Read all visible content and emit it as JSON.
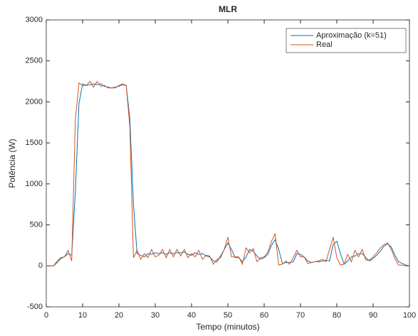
{
  "chart_data": {
    "type": "line",
    "title": "MLR",
    "xlabel": "Tempo (minutos)",
    "ylabel": "Potência (W)",
    "x": [
      0,
      1,
      2,
      3,
      4,
      5,
      6,
      7,
      8,
      9,
      10,
      11,
      12,
      13,
      14,
      15,
      16,
      17,
      18,
      19,
      20,
      21,
      22,
      23,
      24,
      25,
      26,
      27,
      28,
      29,
      30,
      31,
      32,
      33,
      34,
      35,
      36,
      37,
      38,
      39,
      40,
      41,
      42,
      43,
      44,
      45,
      46,
      47,
      48,
      49,
      50,
      51,
      52,
      53,
      54,
      55,
      56,
      57,
      58,
      59,
      60,
      61,
      62,
      63,
      64,
      65,
      66,
      67,
      68,
      69,
      70,
      71,
      72,
      73,
      74,
      75,
      76,
      77,
      78,
      79,
      80,
      81,
      82,
      83,
      84,
      85,
      86,
      87,
      88,
      89,
      90,
      91,
      92,
      93,
      94,
      95,
      96,
      97,
      98,
      99,
      100
    ],
    "series": [
      {
        "name": "Aproximação (k=51)",
        "color": "#0072bd",
        "values": [
          0,
          0,
          0,
          40,
          90,
          110,
          150,
          130,
          900,
          1980,
          2220,
          2200,
          2210,
          2220,
          2210,
          2220,
          2190,
          2180,
          2170,
          2180,
          2190,
          2210,
          2200,
          1800,
          750,
          150,
          130,
          110,
          150,
          140,
          160,
          150,
          160,
          140,
          160,
          150,
          160,
          160,
          170,
          140,
          130,
          160,
          140,
          150,
          120,
          110,
          60,
          50,
          120,
          200,
          280,
          200,
          100,
          100,
          50,
          110,
          200,
          180,
          120,
          80,
          100,
          140,
          250,
          320,
          200,
          30,
          40,
          40,
          50,
          150,
          140,
          110,
          60,
          40,
          50,
          50,
          60,
          70,
          60,
          260,
          300,
          150,
          20,
          60,
          110,
          120,
          150,
          150,
          100,
          60,
          90,
          130,
          180,
          240,
          270,
          230,
          130,
          50,
          30,
          10,
          0
        ]
      },
      {
        "name": "Real",
        "color": "#d95319",
        "values": [
          0,
          0,
          0,
          60,
          100,
          110,
          190,
          60,
          1780,
          2230,
          2200,
          2200,
          2250,
          2180,
          2250,
          2190,
          2200,
          2170,
          2170,
          2170,
          2200,
          2220,
          2200,
          1700,
          100,
          190,
          80,
          150,
          100,
          200,
          110,
          130,
          200,
          100,
          200,
          110,
          200,
          120,
          200,
          100,
          150,
          110,
          190,
          80,
          130,
          120,
          20,
          80,
          100,
          200,
          350,
          110,
          110,
          110,
          20,
          220,
          160,
          210,
          50,
          100,
          110,
          170,
          300,
          390,
          10,
          20,
          60,
          20,
          100,
          190,
          110,
          110,
          30,
          40,
          50,
          60,
          80,
          50,
          200,
          350,
          100,
          10,
          20,
          140,
          50,
          190,
          110,
          200,
          70,
          70,
          110,
          160,
          220,
          260,
          280,
          200,
          90,
          10,
          10,
          0,
          0
        ]
      }
    ],
    "xlim": [
      0,
      100
    ],
    "xticks": [
      0,
      10,
      20,
      30,
      40,
      50,
      60,
      70,
      80,
      90,
      100
    ],
    "ylim": [
      -500,
      3000
    ],
    "yticks": [
      -500,
      0,
      500,
      1000,
      1500,
      2000,
      2500,
      3000
    ],
    "legend": "upper right"
  }
}
